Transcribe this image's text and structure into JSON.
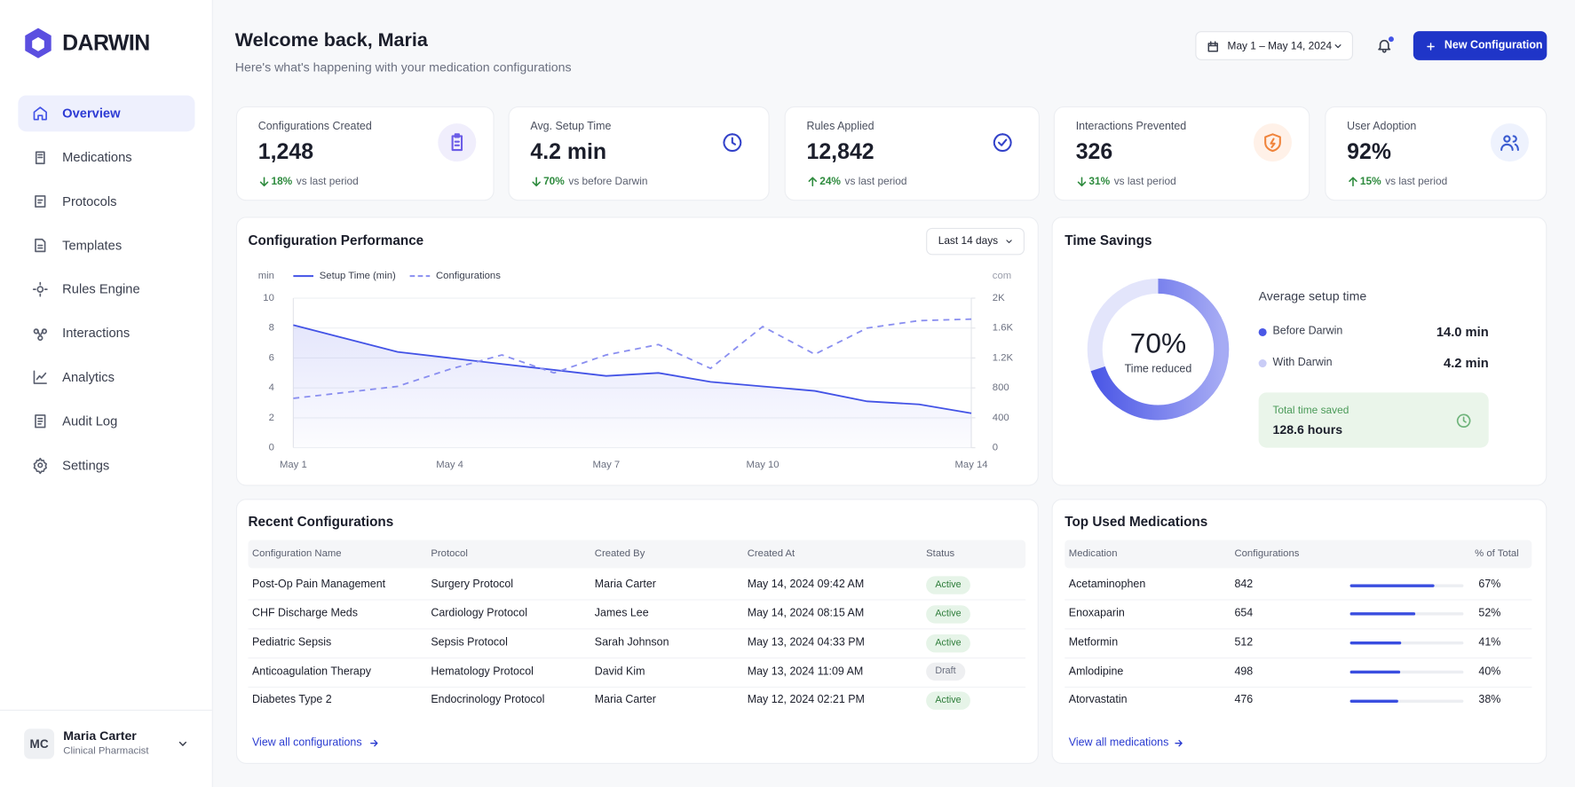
{
  "sidebar": {
    "brand": "DARWIN",
    "nav": [
      "Overview",
      "Medications",
      "Protocols",
      "Templates",
      "Rules Engine",
      "Interactions",
      "Analytics",
      "Audit Log",
      "Settings"
    ]
  },
  "user": {
    "initials": "MC",
    "name": "Maria Carter",
    "role": "Clinical Pharmacist"
  },
  "header": {
    "title": "Welcome back, Maria",
    "subtitle": "Here's what's happening with your medication configurations",
    "date_range": "May 1 – May 14, 2024",
    "primary_button": "New Configuration"
  },
  "kpis": [
    {
      "label": "Configurations Created",
      "value": "1,248",
      "change": "18%",
      "note": "vs last period",
      "trend": "down"
    },
    {
      "label": "Avg. Setup Time",
      "value": "4.2 min",
      "change": "70%",
      "note": "vs before Darwin",
      "trend": "down"
    },
    {
      "label": "Rules Applied",
      "value": "12,842",
      "change": "24%",
      "note": "vs last period",
      "trend": "up"
    },
    {
      "label": "Interactions Prevented",
      "value": "326",
      "change": "31%",
      "note": "vs last period",
      "trend": "down"
    },
    {
      "label": "User Adoption",
      "value": "92%",
      "change": "15%",
      "note": "vs last period",
      "trend": "up"
    }
  ],
  "performance": {
    "type": "line",
    "title": "Configuration Performance",
    "filter": "Last 14 days",
    "y_label": "min",
    "y2_label": "com",
    "categories": [
      "May 1",
      null,
      null,
      "May 4",
      null,
      null,
      "May 7",
      null,
      null,
      "May 10",
      null,
      null,
      null,
      "May 14"
    ],
    "series": [
      {
        "name": "Setup Time (min)",
        "color": "#4353e6",
        "style": "solid",
        "values": [
          8.2,
          7.3,
          6.4,
          6.0,
          5.6,
          5.2,
          4.8,
          5.0,
          4.4,
          4.1,
          3.8,
          3.1,
          2.9,
          2.3
        ]
      },
      {
        "name": "Configurations",
        "color": "#8a8ff0",
        "style": "dashed",
        "axis": "y2",
        "values": [
          660,
          740,
          820,
          1050,
          1240,
          1000,
          1240,
          1380,
          1060,
          1620,
          1250,
          1600,
          1700,
          1720
        ]
      }
    ],
    "ylim": [
      0,
      10
    ],
    "yticks": [
      0,
      2,
      4,
      6,
      8,
      10
    ],
    "y2lim": [
      0,
      2000
    ],
    "y2ticks": [
      0,
      400,
      800,
      {
        "value": 1200,
        "label": "1.2K"
      },
      {
        "value": 1600,
        "label": "1.6K"
      },
      {
        "value": 2000,
        "label": "2K"
      }
    ],
    "grid": true
  },
  "time_savings": {
    "type": "donut",
    "title": "Time Savings",
    "value": 70,
    "value_label": "70%",
    "center_label": "Time reduced",
    "heading": "Average setup time",
    "rows": [
      {
        "label": "Before Darwin",
        "value": "14.0 min",
        "color": "#4a58e6"
      },
      {
        "label": "With Darwin",
        "value": "4.2 min",
        "color": "#c9ccf6"
      }
    ],
    "total_label": "Total time saved",
    "total_value": "128.6 hours"
  },
  "recent": {
    "title": "Recent Configurations",
    "columns": [
      "Configuration Name",
      "Protocol",
      "Created By",
      "Created At",
      "Status"
    ],
    "rows": [
      {
        "name": "Post-Op Pain Management",
        "protocol": "Surgery Protocol",
        "created_by": "Maria Carter",
        "created_at": "May 14, 2024 09:42 AM",
        "status": "Active",
        "status_tone": "success"
      },
      {
        "name": "CHF Discharge Meds",
        "protocol": "Cardiology Protocol",
        "created_by": "James Lee",
        "created_at": "May 14, 2024 08:15 AM",
        "status": "Active",
        "status_tone": "success"
      },
      {
        "name": "Pediatric Sepsis",
        "protocol": "Sepsis Protocol",
        "created_by": "Sarah Johnson",
        "created_at": "May 13, 2024 04:33 PM",
        "status": "Active",
        "status_tone": "success"
      },
      {
        "name": "Anticoagulation Therapy",
        "protocol": "Hematology Protocol",
        "created_by": "David Kim",
        "created_at": "May 13, 2024 11:09 AM",
        "status": "Draft",
        "status_tone": "neutral"
      },
      {
        "name": "Diabetes Type 2",
        "protocol": "Endocrinology Protocol",
        "created_by": "Maria Carter",
        "created_at": "May 12, 2024 02:21 PM",
        "status": "Active",
        "status_tone": "success"
      }
    ],
    "link": "View all configurations"
  },
  "medications": {
    "title": "Top Used Medications",
    "columns": [
      "Medication",
      "Configurations",
      "% of Total"
    ],
    "color": "#3a4ee0",
    "rows": [
      {
        "name": "Acetaminophen",
        "count": 842,
        "percent": 67,
        "percent_label": "67%"
      },
      {
        "name": "Enoxaparin",
        "count": 654,
        "percent": 52,
        "percent_label": "52%"
      },
      {
        "name": "Metformin",
        "count": 512,
        "percent": 41,
        "percent_label": "41%"
      },
      {
        "name": "Amlodipine",
        "count": 498,
        "percent": 40,
        "percent_label": "40%"
      },
      {
        "name": "Atorvastatin",
        "count": 476,
        "percent": 38,
        "percent_label": "38%"
      }
    ],
    "link": "View all medications"
  }
}
